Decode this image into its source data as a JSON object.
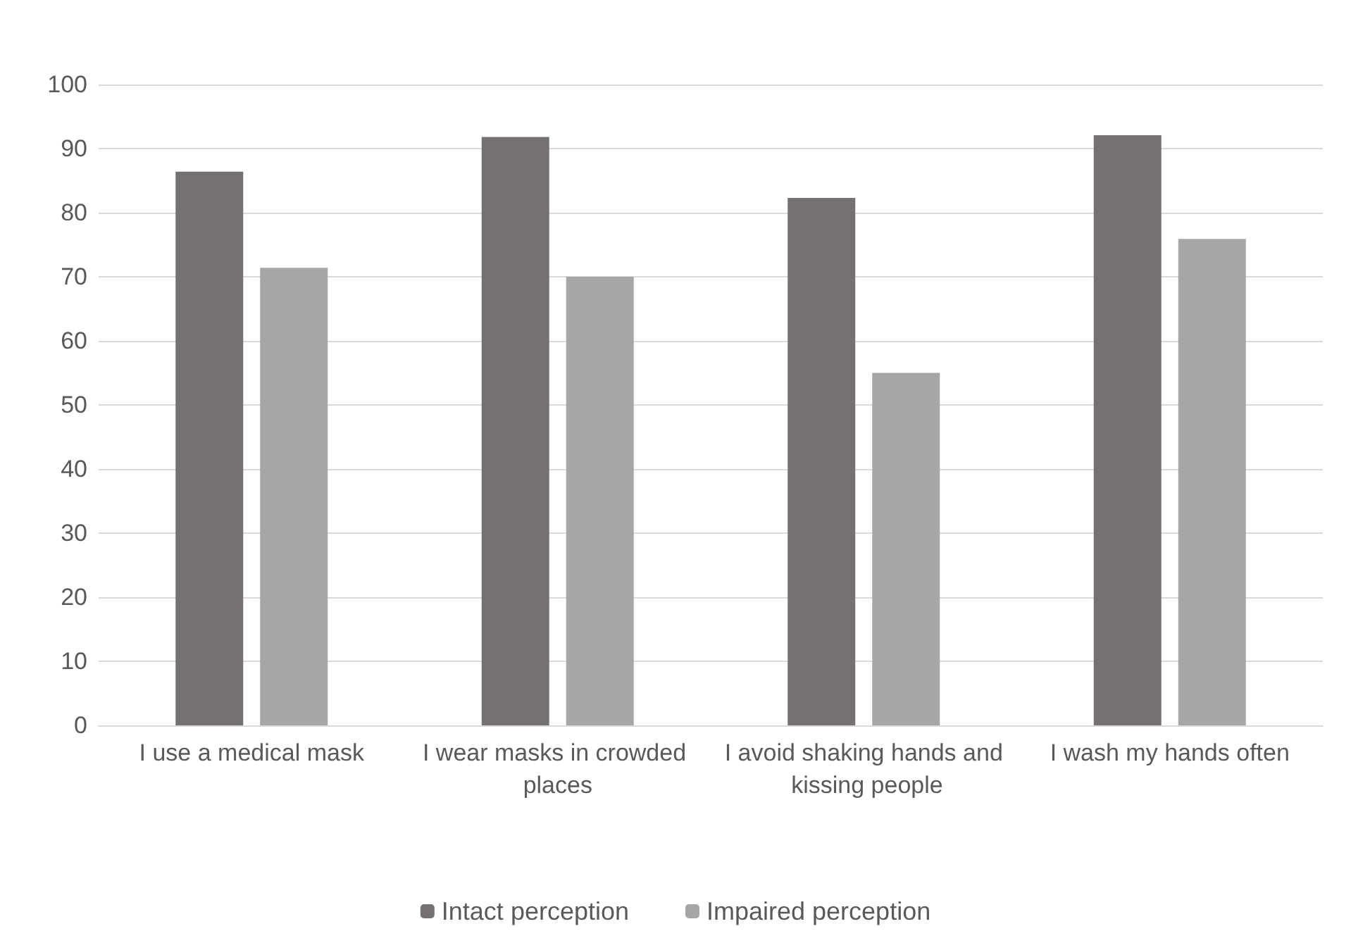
{
  "chart_data": {
    "type": "bar",
    "categories": [
      "I use a medical mask",
      "I wear masks in crowded places",
      "I avoid shaking hands and kissing people",
      "I wash my hands often"
    ],
    "series": [
      {
        "name": "Intact perception",
        "color": "#767171",
        "values": [
          86.4,
          91.8,
          82.3,
          92.1
        ]
      },
      {
        "name": "Impaired perception",
        "color": "#a6a6a6",
        "values": [
          71.4,
          70,
          55,
          75.9
        ]
      }
    ],
    "ylim": [
      0,
      100
    ],
    "yticks": [
      0,
      10,
      20,
      30,
      40,
      50,
      60,
      70,
      80,
      90,
      100
    ],
    "grid": "y",
    "legend": "bottom"
  }
}
